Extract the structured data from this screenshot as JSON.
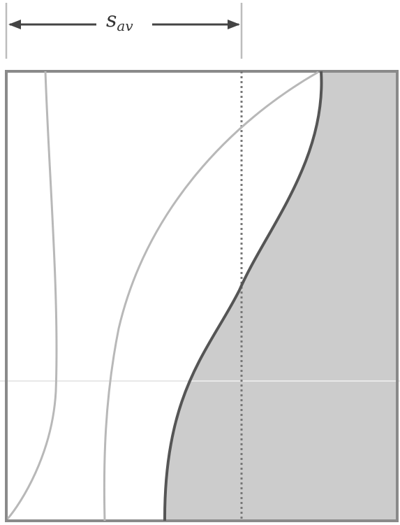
{
  "annotation": {
    "symbol": "s",
    "subscript": "av"
  },
  "colors": {
    "frame": "#8a8a8a",
    "shade": "#cccccc",
    "thick_curve": "#555555",
    "thin_curves": "#b5b5b5",
    "dotted_line": "#777777",
    "dimension_line": "#444444"
  }
}
